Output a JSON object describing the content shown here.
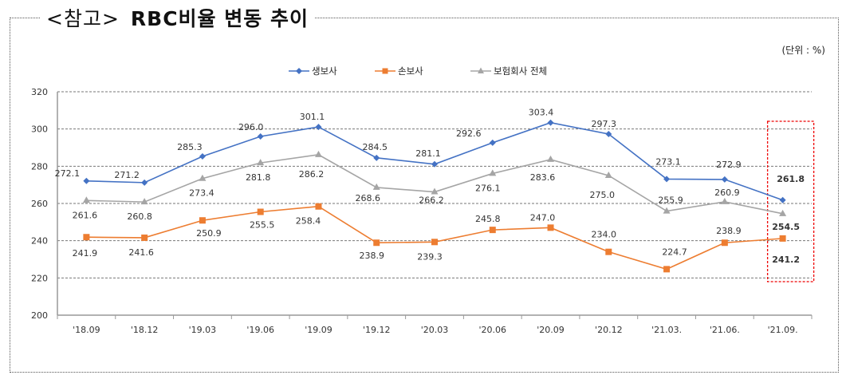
{
  "title": {
    "prefix": "<참고>",
    "main": "RBC비율 변동 추이"
  },
  "unit_label": "(단위 : %)",
  "chart_data": {
    "type": "line",
    "title": "RBC비율 변동 추이",
    "categories": [
      "'18.09",
      "'18.12",
      "'19.03",
      "'19.06",
      "'19.09",
      "'19.12",
      "'20.03",
      "'20.06",
      "'20.09",
      "'20.12",
      "'21.03.",
      "'21.06.",
      "'21.09."
    ],
    "ylim": [
      200,
      320
    ],
    "yticks": [
      200,
      220,
      240,
      260,
      280,
      300,
      320
    ],
    "grid": true,
    "legend_position": "top-center",
    "highlight_category": "'21.09.",
    "series": [
      {
        "name": "생보사",
        "color": "#4472c4",
        "marker": "diamond",
        "values": [
          272.1,
          271.2,
          285.3,
          296.0,
          301.1,
          284.5,
          281.1,
          292.6,
          303.4,
          297.3,
          273.1,
          272.9,
          261.8
        ]
      },
      {
        "name": "손보사",
        "color": "#ed7d31",
        "marker": "square",
        "values": [
          241.9,
          241.6,
          250.9,
          255.5,
          258.4,
          238.9,
          239.3,
          245.8,
          247.0,
          234.0,
          224.7,
          238.9,
          241.2
        ]
      },
      {
        "name": "보험회사 전체",
        "color": "#a5a5a5",
        "marker": "triangle",
        "values": [
          261.6,
          260.8,
          273.4,
          281.8,
          286.2,
          268.6,
          266.2,
          276.1,
          283.6,
          275.0,
          255.9,
          260.9,
          254.5
        ]
      }
    ]
  }
}
